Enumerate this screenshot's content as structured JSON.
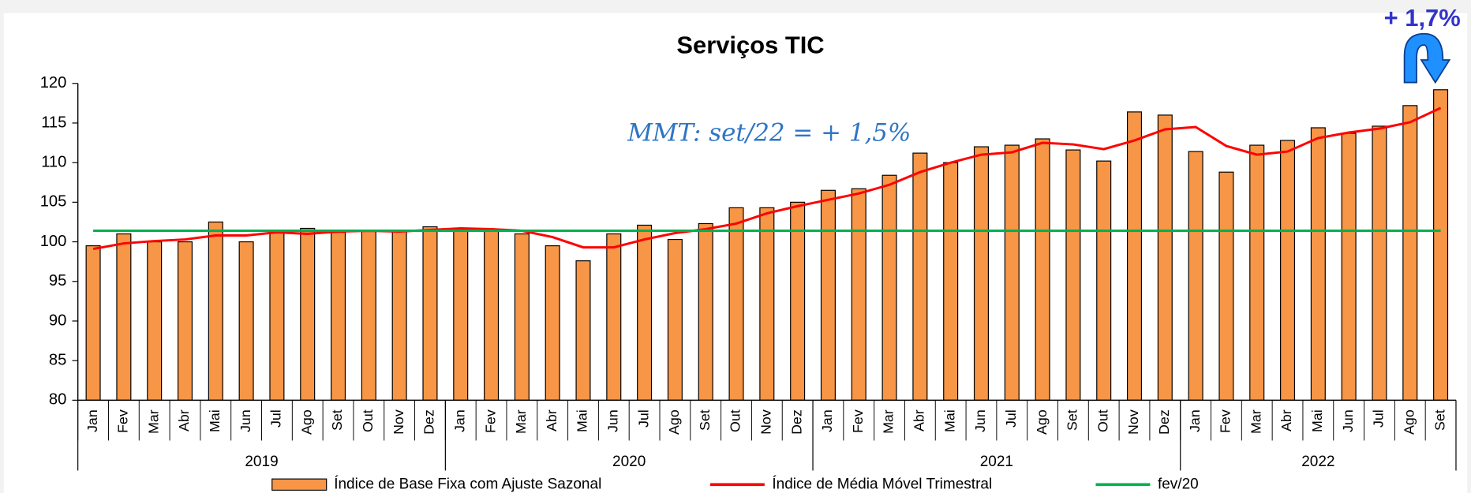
{
  "chart_data": {
    "type": "bar",
    "title": "Serviços TIC",
    "categories": [
      "Jan",
      "Fev",
      "Mar",
      "Abr",
      "Mai",
      "Jun",
      "Jul",
      "Ago",
      "Set",
      "Out",
      "Nov",
      "Dez",
      "Jan",
      "Fev",
      "Mar",
      "Abr",
      "Mai",
      "Jun",
      "Jul",
      "Ago",
      "Set",
      "Out",
      "Nov",
      "Dez",
      "Jan",
      "Fev",
      "Mar",
      "Abr",
      "Mai",
      "Jun",
      "Jul",
      "Ago",
      "Set",
      "Out",
      "Nov",
      "Dez",
      "Jan",
      "Fev",
      "Mar",
      "Abr",
      "Mai",
      "Jun",
      "Jul",
      "Ago",
      "Set"
    ],
    "years": [
      "2019",
      "2020",
      "2021",
      "2022"
    ],
    "series": [
      {
        "name": "Índice de Base Fixa com Ajuste Sazonal",
        "type": "bar",
        "color": "#f79646",
        "values": [
          99.5,
          101,
          100,
          100,
          102.5,
          100,
          101.2,
          101.7,
          101.2,
          101.3,
          101.3,
          101.9,
          101.6,
          101.6,
          101,
          99.5,
          97.6,
          101,
          102.1,
          100.3,
          102.3,
          104.3,
          104.3,
          105,
          106.5,
          106.7,
          108.4,
          111.2,
          110,
          112,
          112.2,
          113,
          111.6,
          110.2,
          116.4,
          116,
          111.4,
          108.8,
          112.2,
          112.8,
          114.4,
          113.7,
          114.6,
          117.2,
          119.2
        ]
      },
      {
        "name": "Índice de Média Móvel Trimestral",
        "type": "line",
        "color": "#ff0000",
        "values": [
          99.1,
          99.8,
          100.1,
          100.3,
          100.8,
          100.8,
          101.2,
          101,
          101.3,
          101.4,
          101.3,
          101.5,
          101.7,
          101.6,
          101.4,
          100.6,
          99.3,
          99.3,
          100.3,
          101.1,
          101.6,
          102.3,
          103.6,
          104.5,
          105.3,
          106.1,
          107.2,
          108.8,
          110,
          111,
          111.3,
          112.5,
          112.3,
          111.7,
          112.8,
          114.2,
          114.5,
          112.1,
          111,
          111.4,
          113.1,
          113.8,
          114.3,
          115.1,
          116.9
        ]
      },
      {
        "name": "fev/20",
        "type": "line",
        "color": "#00b050",
        "values": [
          101.4,
          101.4,
          101.4,
          101.4,
          101.4,
          101.4,
          101.4,
          101.4,
          101.4,
          101.4,
          101.4,
          101.4,
          101.4,
          101.4,
          101.4,
          101.4,
          101.4,
          101.4,
          101.4,
          101.4,
          101.4,
          101.4,
          101.4,
          101.4,
          101.4,
          101.4,
          101.4,
          101.4,
          101.4,
          101.4,
          101.4,
          101.4,
          101.4,
          101.4,
          101.4,
          101.4,
          101.4,
          101.4,
          101.4,
          101.4,
          101.4,
          101.4,
          101.4,
          101.4,
          101.4
        ]
      }
    ],
    "ylim": [
      80,
      120
    ],
    "yticks": [
      80,
      85,
      90,
      95,
      100,
      105,
      110,
      115,
      120
    ],
    "annotations": [
      "MMT: set/22 = + 1,5%",
      "+ 1,7%"
    ],
    "legend": "bottom"
  }
}
